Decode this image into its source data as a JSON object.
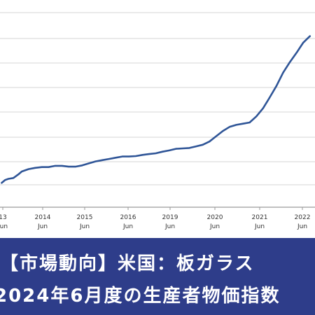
{
  "chart_data": {
    "type": "line",
    "title": "",
    "xlabel": "",
    "ylabel": "",
    "grid": true,
    "line_color": "#2f5597",
    "x_ticks": [
      {
        "year": "13",
        "month": "Jun"
      },
      {
        "year": "2014",
        "month": "Jun"
      },
      {
        "year": "2015",
        "month": "Jun"
      },
      {
        "year": "2016",
        "month": "Jun"
      },
      {
        "year": "2019",
        "month": "Jun"
      },
      {
        "year": "2020",
        "month": "Jun"
      },
      {
        "year": "2021",
        "month": "Jun"
      },
      {
        "year": "2022",
        "month": "Jun"
      }
    ],
    "series": [
      {
        "x": [
          2013.4,
          2013.5,
          2013.6,
          2013.75,
          2013.9,
          2014.0,
          2014.2,
          2014.4,
          2014.6,
          2014.8,
          2015.0,
          2015.2,
          2015.4,
          2015.6,
          2015.8,
          2016.0,
          2016.2,
          2016.4,
          2016.6,
          2016.8,
          2017.0,
          2017.2,
          2017.4,
          2017.6,
          2017.8,
          2018.0,
          2018.2,
          2018.4,
          2018.6,
          2018.8,
          2019.0,
          2019.2,
          2019.4,
          2019.6,
          2019.8,
          2020.0,
          2020.2,
          2020.4,
          2020.6,
          2020.8,
          2021.0,
          2021.2,
          2021.4,
          2021.6,
          2021.8,
          2022.0,
          2022.2,
          2022.4,
          2022.6
        ],
        "y": [
          2.0,
          2.7,
          3.0,
          3.2,
          4.1,
          4.8,
          5.4,
          5.7,
          5.9,
          5.9,
          6.2,
          6.2,
          6.0,
          6.0,
          6.3,
          6.8,
          7.3,
          7.6,
          7.9,
          8.2,
          8.5,
          8.5,
          8.6,
          8.9,
          9.1,
          9.3,
          9.7,
          10.0,
          10.4,
          10.5,
          10.6,
          11.0,
          11.4,
          12.2,
          13.5,
          14.8,
          15.8,
          16.3,
          16.6,
          16.9,
          18.4,
          20.4,
          23.1,
          25.9,
          29.2,
          31.8,
          34.1,
          36.6,
          38.2
        ]
      }
    ]
  },
  "banner": {
    "line1": "【市場動向】米国：板ガラス",
    "line2": "2024年6月度の生産者物価指数"
  }
}
